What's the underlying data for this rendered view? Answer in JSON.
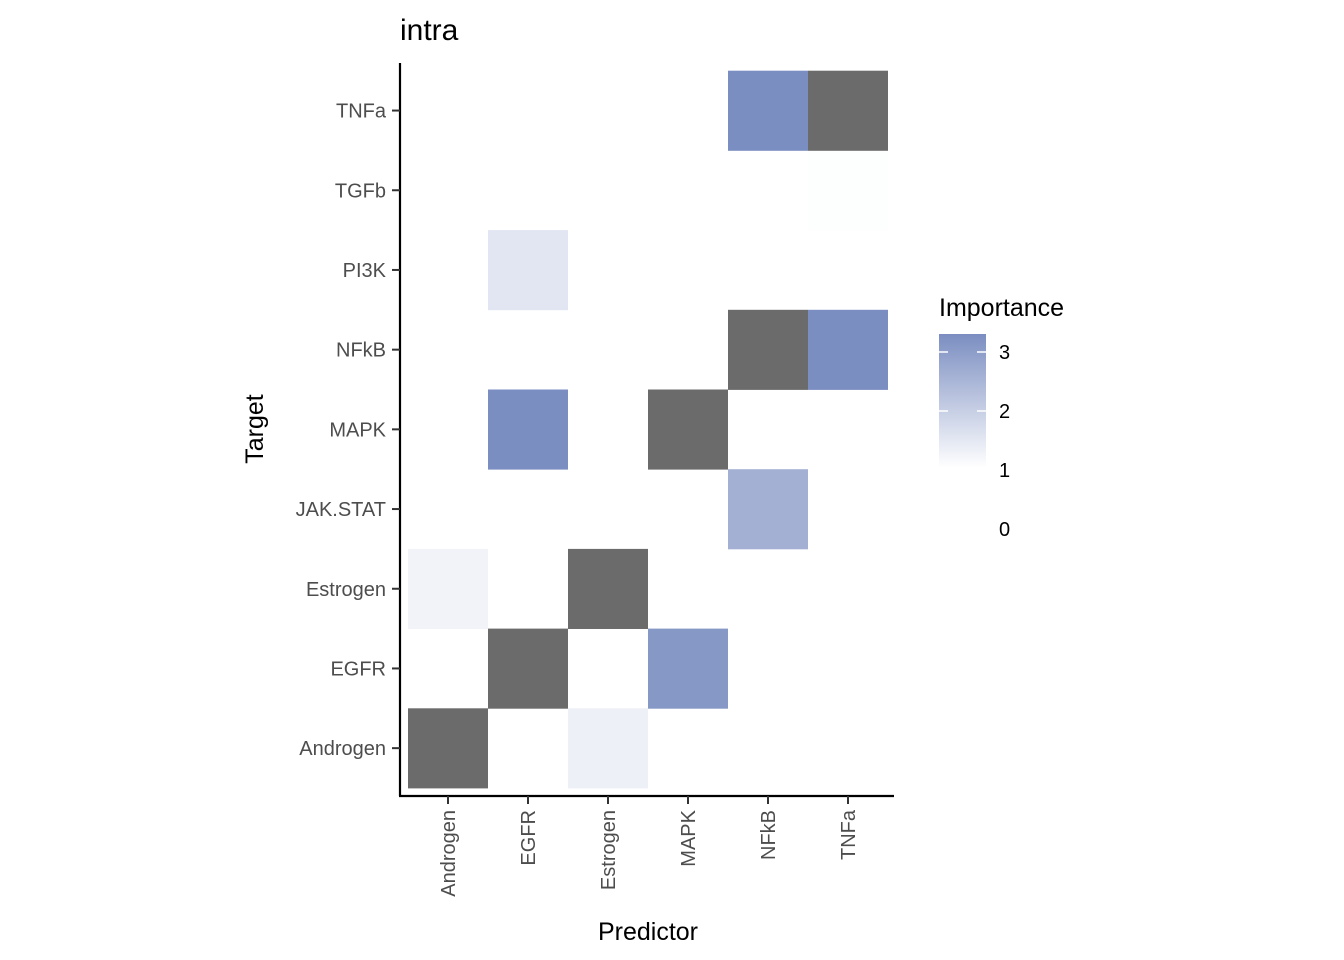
{
  "chart_data": {
    "type": "heatmap",
    "title": "intra",
    "xlabel": "Predictor",
    "ylabel": "Target",
    "x_categories": [
      "Androgen",
      "EGFR",
      "Estrogen",
      "MAPK",
      "NFkB",
      "TNFa"
    ],
    "y_categories": [
      "Androgen",
      "EGFR",
      "Estrogen",
      "JAK.STAT",
      "MAPK",
      "NFkB",
      "PI3K",
      "TGFb",
      "TNFa"
    ],
    "cells": [
      {
        "x": "Androgen",
        "y": "Androgen",
        "diagonal": true
      },
      {
        "x": "Estrogen",
        "y": "Androgen",
        "value": 1.3
      },
      {
        "x": "EGFR",
        "y": "EGFR",
        "diagonal": true
      },
      {
        "x": "MAPK",
        "y": "EGFR",
        "value": 3.1
      },
      {
        "x": "Androgen",
        "y": "Estrogen",
        "value": 1.25
      },
      {
        "x": "Estrogen",
        "y": "Estrogen",
        "diagonal": true
      },
      {
        "x": "NFkB",
        "y": "JAK.STAT",
        "value": 2.6
      },
      {
        "x": "EGFR",
        "y": "MAPK",
        "value": 3.3
      },
      {
        "x": "MAPK",
        "y": "MAPK",
        "diagonal": true
      },
      {
        "x": "NFkB",
        "y": "NFkB",
        "diagonal": true
      },
      {
        "x": "TNFa",
        "y": "NFkB",
        "value": 3.3
      },
      {
        "x": "EGFR",
        "y": "PI3K",
        "value": 1.5
      },
      {
        "x": "TNFa",
        "y": "TGFb",
        "value": 1.03
      },
      {
        "x": "NFkB",
        "y": "TNFa",
        "value": 3.3
      },
      {
        "x": "TNFa",
        "y": "TNFa",
        "diagonal": true
      }
    ],
    "legend": {
      "title": "Importance",
      "ticks": [
        "3",
        "2",
        "1",
        "0"
      ],
      "range": [
        1,
        3.3
      ],
      "low_color": "#ffffff",
      "high_color": "#7b8ec1",
      "diagonal_color": "#6b6b6b"
    }
  }
}
